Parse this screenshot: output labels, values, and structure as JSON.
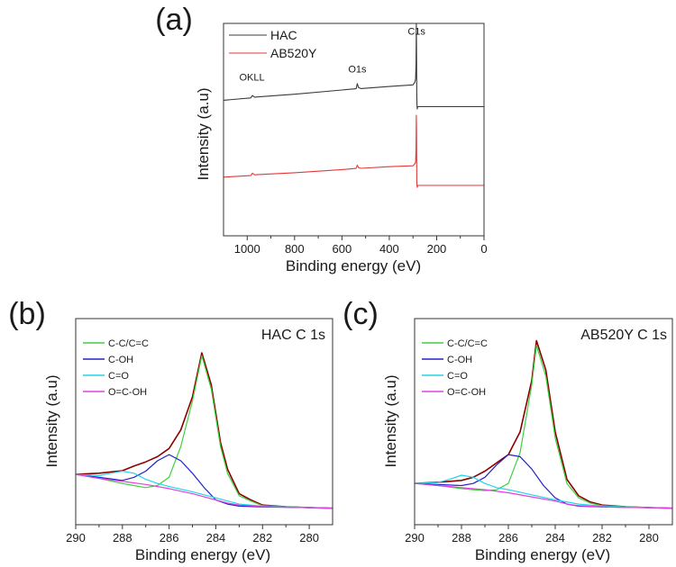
{
  "chart_data": [
    {
      "panel": "(a)",
      "type": "line",
      "xlabel": "Binding energy (eV)",
      "ylabel": "Intensity (a.u)",
      "xlim": [
        1100,
        0
      ],
      "xticks": [
        1000,
        800,
        600,
        400,
        200,
        0
      ],
      "ylim": [
        0,
        1
      ],
      "legend": "top-left",
      "annotations": [
        {
          "text": "OKLL",
          "x": 980,
          "y": 0.64
        },
        {
          "text": "O1s",
          "x": 535,
          "y": 0.69
        },
        {
          "text": "C1s",
          "x": 285,
          "y": 0.93
        }
      ],
      "series": [
        {
          "name": "HAC",
          "color": "#3a3a3a",
          "x": [
            1100,
            985,
            978,
            970,
            800,
            600,
            540,
            535,
            530,
            520,
            400,
            300,
            292,
            289,
            287,
            286,
            285,
            284,
            283,
            282,
            281,
            280,
            278,
            0
          ],
          "y": [
            0.515,
            0.53,
            0.545,
            0.535,
            0.553,
            0.58,
            0.588,
            0.62,
            0.595,
            0.589,
            0.602,
            0.612,
            0.63,
            0.65,
            0.75,
            1.0,
            0.88,
            0.56,
            0.49,
            0.46,
            0.47,
            0.475,
            0.475,
            0.475
          ]
        },
        {
          "name": "AB520Y",
          "color": "#e03a3a",
          "x": [
            1100,
            985,
            978,
            970,
            800,
            600,
            540,
            535,
            530,
            520,
            400,
            300,
            292,
            289,
            287,
            286,
            285,
            284,
            283,
            282,
            281,
            280,
            278,
            0
          ],
          "y": [
            0.03,
            0.04,
            0.055,
            0.045,
            0.058,
            0.078,
            0.085,
            0.105,
            0.09,
            0.086,
            0.096,
            0.102,
            0.115,
            0.125,
            0.21,
            0.42,
            0.35,
            0.01,
            -0.02,
            -0.035,
            -0.028,
            -0.022,
            -0.022,
            -0.022
          ]
        }
      ]
    },
    {
      "panel": "(b)",
      "type": "line",
      "title": "HAC C 1s",
      "xlabel": "Binding energy (eV)",
      "ylabel": "Intensity (a.u)",
      "xlim": [
        290,
        279
      ],
      "xticks": [
        290,
        288,
        286,
        284,
        282,
        280
      ],
      "ylim": [
        0,
        1
      ],
      "legend": "top-left",
      "series": [
        {
          "name": "envelope",
          "color": "#8b0000",
          "show_in_legend": false,
          "x": [
            290,
            289,
            288,
            287.5,
            287,
            286.5,
            286,
            285.5,
            285,
            284.6,
            284.2,
            283.8,
            283.5,
            283,
            282.5,
            282,
            281,
            280,
            279
          ],
          "y": [
            0.244,
            0.25,
            0.262,
            0.285,
            0.305,
            0.33,
            0.37,
            0.46,
            0.62,
            0.834,
            0.68,
            0.4,
            0.27,
            0.15,
            0.12,
            0.095,
            0.087,
            0.083,
            0.08
          ]
        },
        {
          "name": "C-C/C=C",
          "color": "#3fd13f",
          "x": [
            290,
            289,
            288,
            287.5,
            287,
            286.5,
            286,
            285.5,
            285,
            284.6,
            284.2,
            283.8,
            283.5,
            283,
            282.5,
            282,
            281,
            280,
            279
          ],
          "y": [
            0.244,
            0.225,
            0.2,
            0.19,
            0.18,
            0.19,
            0.23,
            0.38,
            0.6,
            0.82,
            0.66,
            0.38,
            0.25,
            0.14,
            0.115,
            0.092,
            0.087,
            0.083,
            0.08
          ]
        },
        {
          "name": "C-OH",
          "color": "#2222cc",
          "x": [
            290,
            289,
            288,
            287.5,
            287,
            286.5,
            286,
            285.5,
            285,
            284.5,
            284,
            283.5,
            283,
            282,
            280,
            279
          ],
          "y": [
            0.244,
            0.23,
            0.215,
            0.23,
            0.26,
            0.31,
            0.34,
            0.31,
            0.25,
            0.18,
            0.12,
            0.1,
            0.09,
            0.086,
            0.083,
            0.08
          ]
        },
        {
          "name": "C=O",
          "color": "#22d4e8",
          "x": [
            290,
            289,
            288.5,
            288,
            287.5,
            287,
            286.5,
            286,
            285,
            284,
            283,
            282,
            280,
            279
          ],
          "y": [
            0.244,
            0.238,
            0.25,
            0.26,
            0.25,
            0.22,
            0.2,
            0.185,
            0.16,
            0.13,
            0.1,
            0.09,
            0.083,
            0.08
          ]
        },
        {
          "name": "O=C-OH",
          "color": "#e040e0",
          "x": [
            290,
            289,
            288,
            287,
            286,
            285,
            284,
            283.5,
            283,
            282,
            281,
            280,
            279
          ],
          "y": [
            0.244,
            0.225,
            0.21,
            0.195,
            0.175,
            0.15,
            0.12,
            0.105,
            0.095,
            0.088,
            0.085,
            0.083,
            0.08
          ]
        }
      ]
    },
    {
      "panel": "(c)",
      "type": "line",
      "title": "AB520Y C 1s",
      "xlabel": "Binding energy (eV)",
      "ylabel": "Intensity (a.u)",
      "xlim": [
        290,
        279
      ],
      "xticks": [
        290,
        288,
        286,
        284,
        282,
        280
      ],
      "ylim": [
        0,
        1
      ],
      "legend": "top-left",
      "series": [
        {
          "name": "envelope",
          "color": "#8b0000",
          "show_in_legend": false,
          "x": [
            290,
            289,
            288,
            287.5,
            287,
            286.5,
            286,
            285.5,
            285,
            284.8,
            284.4,
            284,
            283.5,
            283,
            282.5,
            282,
            281,
            280,
            279
          ],
          "y": [
            0.2,
            0.206,
            0.215,
            0.23,
            0.26,
            0.3,
            0.34,
            0.45,
            0.7,
            0.893,
            0.75,
            0.45,
            0.22,
            0.14,
            0.11,
            0.095,
            0.087,
            0.083,
            0.08
          ]
        },
        {
          "name": "C-C/C=C",
          "color": "#3fd13f",
          "x": [
            290,
            289,
            288,
            287.5,
            287,
            286.5,
            286,
            285.5,
            285,
            284.8,
            284.4,
            284,
            283.5,
            283,
            282.5,
            282,
            281,
            280,
            279
          ],
          "y": [
            0.2,
            0.19,
            0.175,
            0.17,
            0.165,
            0.17,
            0.2,
            0.35,
            0.68,
            0.87,
            0.72,
            0.42,
            0.2,
            0.13,
            0.105,
            0.092,
            0.087,
            0.083,
            0.08
          ]
        },
        {
          "name": "C-OH",
          "color": "#2222cc",
          "x": [
            290,
            289,
            288,
            287.5,
            287,
            286.5,
            286,
            285.5,
            285,
            284.5,
            284,
            283.5,
            283,
            282,
            280,
            279
          ],
          "y": [
            0.2,
            0.195,
            0.19,
            0.2,
            0.23,
            0.29,
            0.34,
            0.33,
            0.27,
            0.19,
            0.13,
            0.1,
            0.09,
            0.086,
            0.083,
            0.08
          ]
        },
        {
          "name": "C=O",
          "color": "#22d4e8",
          "x": [
            290,
            289,
            288.5,
            288,
            287.5,
            287,
            286.5,
            286,
            285,
            284,
            283,
            282,
            280,
            279
          ],
          "y": [
            0.2,
            0.205,
            0.22,
            0.24,
            0.23,
            0.2,
            0.18,
            0.17,
            0.145,
            0.12,
            0.1,
            0.09,
            0.083,
            0.08
          ]
        },
        {
          "name": "O=C-OH",
          "color": "#e040e0",
          "x": [
            290,
            289,
            288,
            287,
            286,
            285,
            284,
            283.5,
            283,
            282,
            281,
            280,
            279
          ],
          "y": [
            0.2,
            0.19,
            0.18,
            0.17,
            0.155,
            0.135,
            0.115,
            0.1,
            0.092,
            0.087,
            0.084,
            0.082,
            0.08
          ]
        }
      ]
    }
  ]
}
